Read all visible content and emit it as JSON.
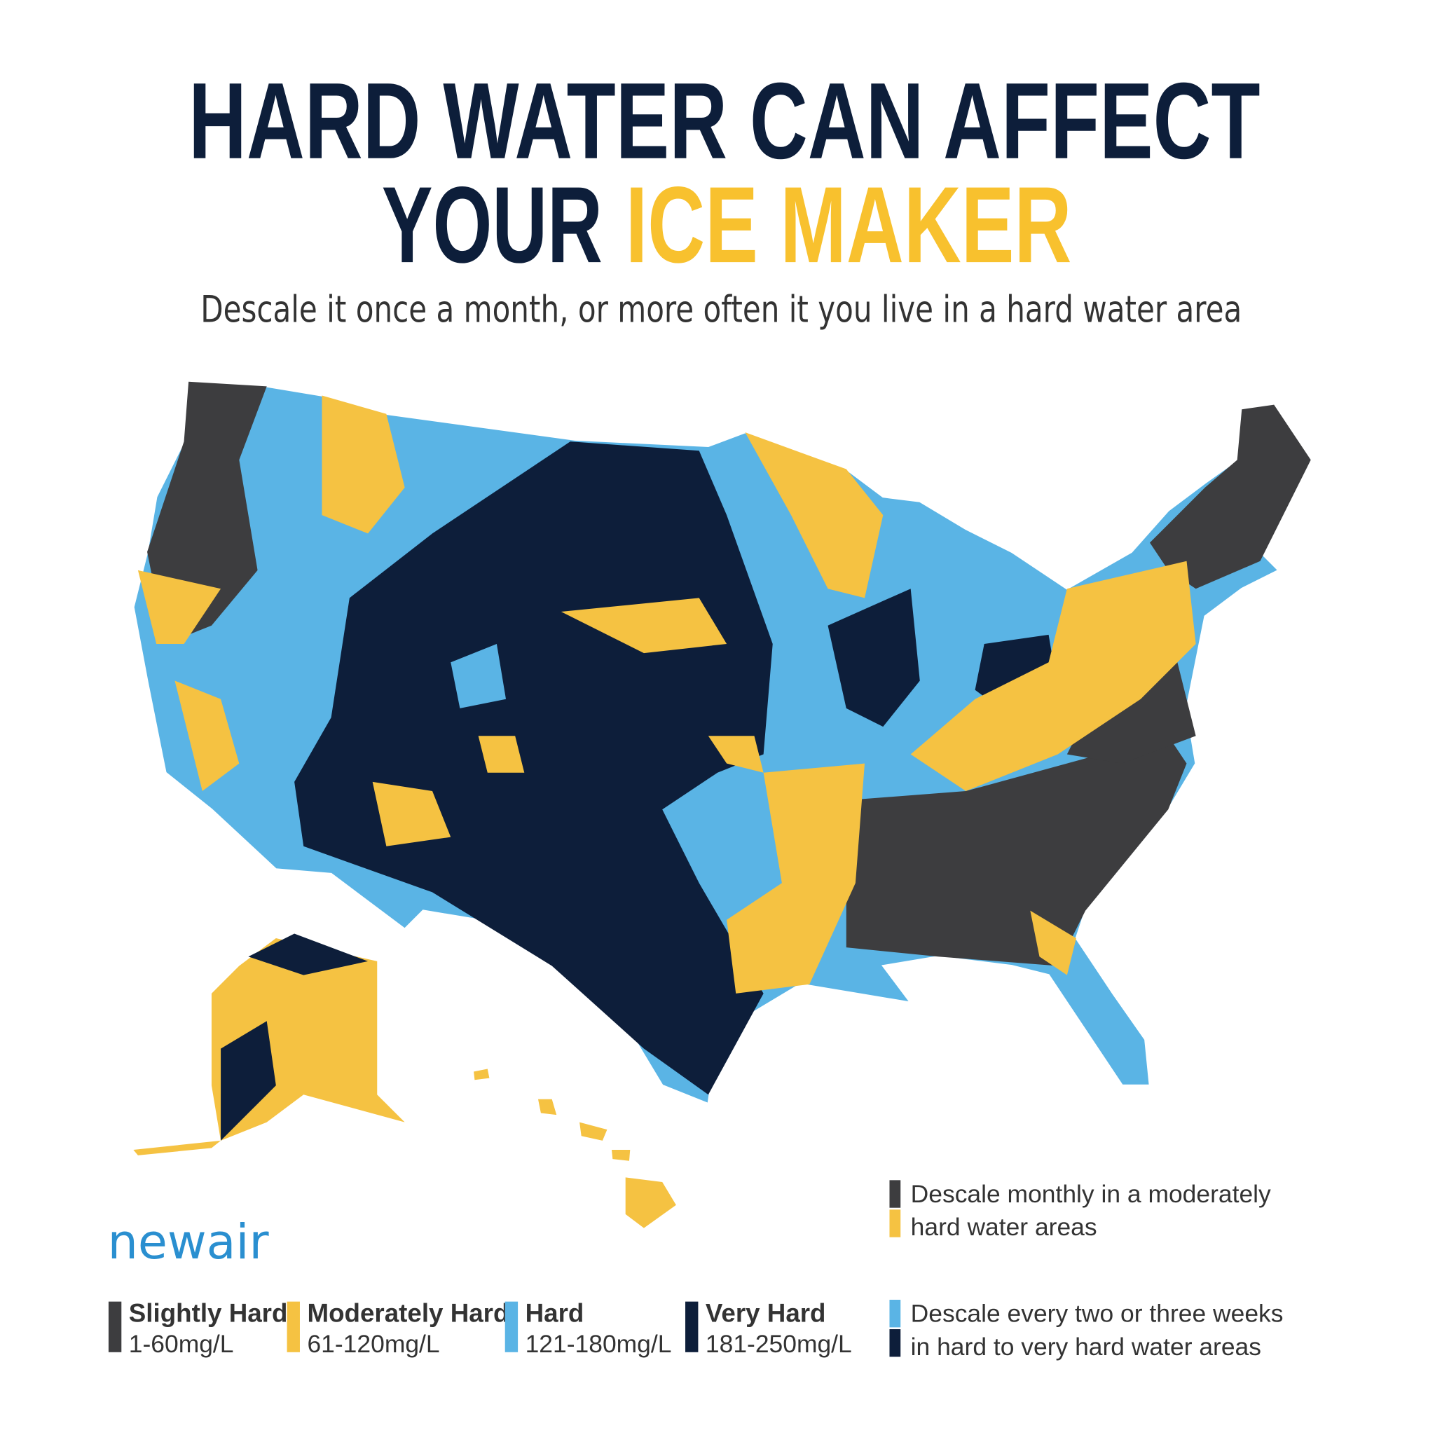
{
  "header": {
    "title_line1": "HARD WATER CAN AFFECT",
    "title_line2_part1": "YOUR",
    "title_line2_part2": "ICE MAKER",
    "subtitle": "Descale it once a month, or more often it you live in a hard water area"
  },
  "brand": "newair",
  "legend": [
    {
      "label": "Slightly Hard",
      "range": "1-60mg/L",
      "color": "#3d3d3f"
    },
    {
      "label": "Moderately Hard",
      "range": "61-120mg/L",
      "color": "#f5c242"
    },
    {
      "label": "Hard",
      "range": "121-180mg/L",
      "color": "#5ab4e5"
    },
    {
      "label": "Very Hard",
      "range": "181-250mg/L",
      "color": "#0d1e3a"
    }
  ],
  "notes": [
    {
      "line1": "Descale monthly in a moderately",
      "line2": "hard water areas",
      "colors": [
        "#3d3d3f",
        "#f5c242"
      ]
    },
    {
      "line1": "Descale every two or three weeks",
      "line2": "in hard to very hard water areas",
      "colors": [
        "#5ab4e5",
        "#0d1e3a"
      ]
    }
  ]
}
